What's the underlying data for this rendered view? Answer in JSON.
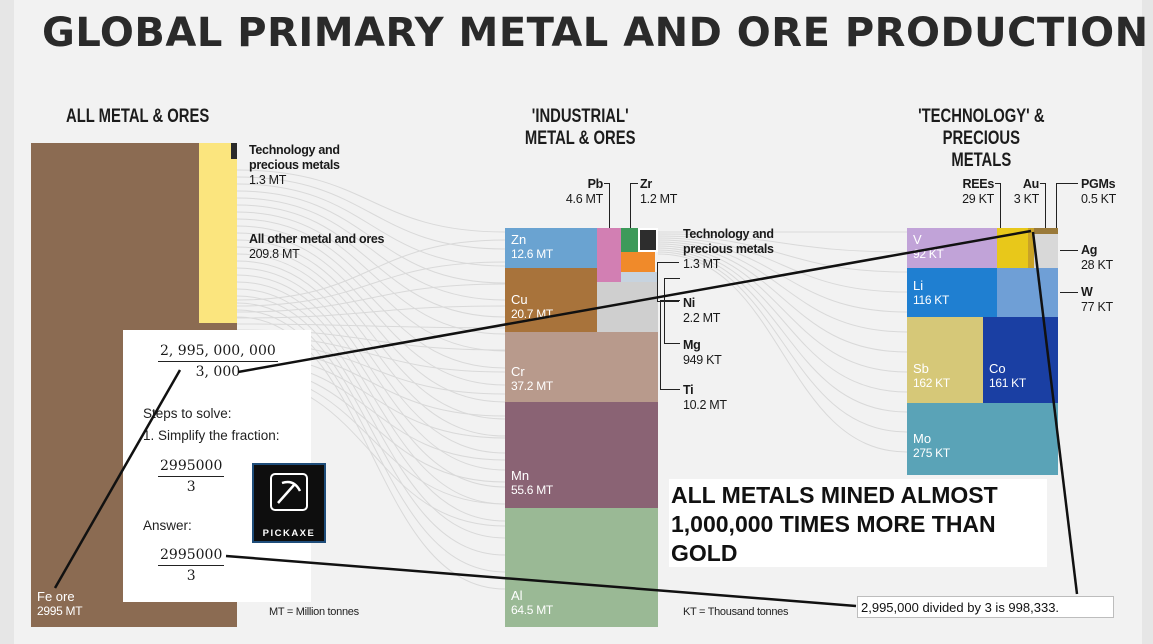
{
  "title": "GLOBAL PRIMARY METAL AND ORE PRODUCTION",
  "chart_data": [
    {
      "type": "bar",
      "title": "ALL METAL & ORES",
      "unit_note": "MT = Million tonnes",
      "blocks": [
        {
          "id": "fe",
          "label": "Fe ore",
          "value": 2995,
          "value_text": "2995 MT",
          "color": "#8b6b52"
        },
        {
          "id": "other",
          "label": "All other metal and ores",
          "value": 209.8,
          "value_text": "209.8 MT",
          "color": "#fbe57e"
        },
        {
          "id": "tech",
          "label": "Technology and precious metals",
          "value": 1.3,
          "value_text": "1.3 MT",
          "color": "#2a2a2a"
        }
      ]
    },
    {
      "type": "bar",
      "title": "'INDUSTRIAL' METAL & ORES",
      "blocks": [
        {
          "id": "zn",
          "label": "Zn",
          "value": 12.6,
          "value_text": "12.6 MT",
          "color": "#6aa3d1"
        },
        {
          "id": "cu",
          "label": "Cu",
          "value": 20.7,
          "value_text": "20.7 MT",
          "color": "#a8733b"
        },
        {
          "id": "cr",
          "label": "Cr",
          "value": 37.2,
          "value_text": "37.2 MT",
          "color": "#b89a8c"
        },
        {
          "id": "mn",
          "label": "Mn",
          "value": 55.6,
          "value_text": "55.6 MT",
          "color": "#8a6374"
        },
        {
          "id": "al",
          "label": "Al",
          "value": 64.5,
          "value_text": "64.5 MT",
          "color": "#9ab995"
        },
        {
          "id": "pb",
          "label": "Pb",
          "value": 4.6,
          "value_text": "4.6 MT",
          "color": "#d27fb3"
        },
        {
          "id": "zr",
          "label": "Zr",
          "value": 1.2,
          "value_text": "1.2 MT",
          "color": "#3d9a5a"
        },
        {
          "id": "tech2",
          "label": "Technology and precious metals",
          "value": 1.3,
          "value_text": "1.3 MT",
          "color": "#2d2d2d"
        },
        {
          "id": "ni",
          "label": "Ni",
          "value": 2.2,
          "value_text": "2.2 MT",
          "color": "#f08a2a"
        },
        {
          "id": "mg",
          "label": "Mg",
          "value": 0.949,
          "value_text": "949 KT",
          "color": "#c7d3df"
        },
        {
          "id": "ti",
          "label": "Ti",
          "value": 10.2,
          "value_text": "10.2 MT",
          "color": "#cfcfcf"
        }
      ]
    },
    {
      "type": "bar",
      "title": "'TECHNOLOGY' & PRECIOUS METALS",
      "unit_note": "KT = Thousand tonnes",
      "blocks": [
        {
          "id": "v",
          "label": "V",
          "value": 92,
          "value_text": "92 KT",
          "color": "#c1a3d8"
        },
        {
          "id": "li",
          "label": "Li",
          "value": 116,
          "value_text": "116 KT",
          "color": "#1f7fd1"
        },
        {
          "id": "sb",
          "label": "Sb",
          "value": 162,
          "value_text": "162 KT",
          "color": "#d6c878"
        },
        {
          "id": "co",
          "label": "Co",
          "value": 161,
          "value_text": "161 KT",
          "color": "#1a3fa3"
        },
        {
          "id": "mo",
          "label": "Mo",
          "value": 275,
          "value_text": "275 KT",
          "color": "#5aa3b7"
        },
        {
          "id": "rees",
          "label": "REEs",
          "value": 29,
          "value_text": "29 KT",
          "color": "#e8c81a"
        },
        {
          "id": "au",
          "label": "Au",
          "value": 3,
          "value_text": "3 KT",
          "color": "#c9a227"
        },
        {
          "id": "pgms",
          "label": "PGMs",
          "value": 0.5,
          "value_text": "0.5 KT",
          "color": "#9a7a3a"
        },
        {
          "id": "ag",
          "label": "Ag",
          "value": 28,
          "value_text": "28 KT",
          "color": "#d8d8d8"
        },
        {
          "id": "w",
          "label": "W",
          "value": 77,
          "value_text": "77 KT",
          "color": "#6f9fd6"
        }
      ]
    }
  ],
  "overlay": {
    "fraction_1": {
      "numerator": "2, 995, 000, 000",
      "denominator": "3, 000"
    },
    "steps_heading": "Steps to solve:",
    "step_1": "1. Simplify the fraction:",
    "fraction_2": {
      "numerator": "2995000",
      "denominator": "3"
    },
    "answer_label": "Answer:",
    "fraction_3": {
      "numerator": "2995000",
      "denominator": "3"
    },
    "logo_text": "PICKAXE",
    "callout": "ALL METALS MINED ALMOST\n1,000,000 TIMES MORE THAN\nGOLD",
    "result": "2,995,000 divided by 3 is 998,333."
  },
  "colors": {
    "background": "#f2f2f2",
    "annotation_lines": "#111111",
    "sankey_links": "#d9d9d9"
  }
}
